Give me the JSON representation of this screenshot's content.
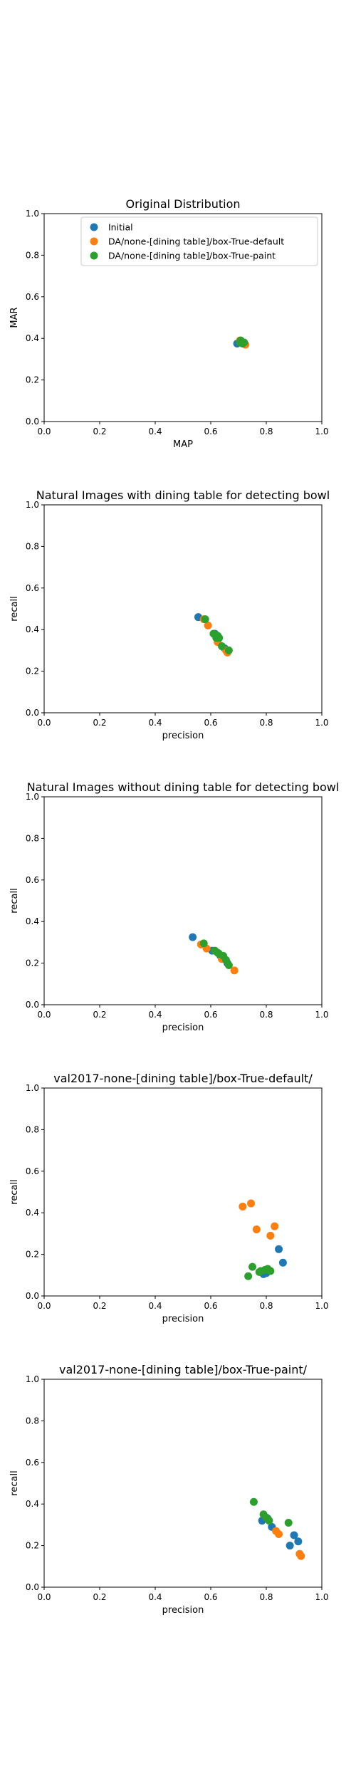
{
  "colors": {
    "initial": "#1f77b4",
    "default": "#ff7f0e",
    "paint": "#2ca02c"
  },
  "chart_data": [
    {
      "type": "scatter",
      "title": "Original Distribution",
      "xlabel": "MAP",
      "ylabel": "MAR",
      "xlim": [
        0,
        1
      ],
      "ylim": [
        0,
        1
      ],
      "xticks": [
        "0.0",
        "0.2",
        "0.4",
        "0.6",
        "0.8",
        "1.0"
      ],
      "yticks": [
        "0.0",
        "0.2",
        "0.4",
        "0.6",
        "0.8",
        "1.0"
      ],
      "legend": {
        "placement": "upper-center"
      },
      "series": [
        {
          "name": "Initial",
          "color": "#1f77b4",
          "points": [
            [
              0.695,
              0.375
            ]
          ]
        },
        {
          "name": "DA/none-[dining table]/box-True-default",
          "color": "#ff7f0e",
          "points": [
            [
              0.71,
              0.38
            ],
            [
              0.725,
              0.37
            ],
            [
              0.705,
              0.39
            ]
          ]
        },
        {
          "name": "DA/none-[dining table]/box-True-paint",
          "color": "#2ca02c",
          "points": [
            [
              0.71,
              0.385
            ],
            [
              0.705,
              0.38
            ],
            [
              0.715,
              0.375
            ],
            [
              0.72,
              0.38
            ],
            [
              0.708,
              0.39
            ]
          ]
        }
      ]
    },
    {
      "type": "scatter",
      "title": "Natural Images with dining table for detecting bowl",
      "xlabel": "precision",
      "ylabel": "recall",
      "xlim": [
        0,
        1
      ],
      "ylim": [
        0,
        1
      ],
      "xticks": [
        "0.0",
        "0.2",
        "0.4",
        "0.6",
        "0.8",
        "1.0"
      ],
      "yticks": [
        "0.0",
        "0.2",
        "0.4",
        "0.6",
        "0.8",
        "1.0"
      ],
      "series": [
        {
          "color": "#1f77b4",
          "points": [
            [
              0.555,
              0.46
            ],
            [
              0.615,
              0.38
            ],
            [
              0.65,
              0.31
            ]
          ]
        },
        {
          "color": "#ff7f0e",
          "points": [
            [
              0.59,
              0.42
            ],
            [
              0.625,
              0.34
            ],
            [
              0.66,
              0.29
            ],
            [
              0.655,
              0.3
            ],
            [
              0.575,
              0.45
            ]
          ]
        },
        {
          "color": "#2ca02c",
          "points": [
            [
              0.58,
              0.45
            ],
            [
              0.61,
              0.38
            ],
            [
              0.625,
              0.37
            ],
            [
              0.63,
              0.36
            ],
            [
              0.665,
              0.3
            ],
            [
              0.64,
              0.32
            ],
            [
              0.62,
              0.36
            ]
          ]
        }
      ]
    },
    {
      "type": "scatter",
      "title": "Natural Images without dining table for detecting bowl",
      "xlabel": "precision",
      "ylabel": "recall",
      "xlim": [
        0,
        1
      ],
      "ylim": [
        0,
        1
      ],
      "xticks": [
        "0.0",
        "0.2",
        "0.4",
        "0.6",
        "0.8",
        "1.0"
      ],
      "yticks": [
        "0.0",
        "0.2",
        "0.4",
        "0.6",
        "0.8",
        "1.0"
      ],
      "series": [
        {
          "color": "#1f77b4",
          "points": [
            [
              0.535,
              0.325
            ],
            [
              0.605,
              0.26
            ],
            [
              0.635,
              0.235
            ],
            [
              0.66,
              0.2
            ]
          ]
        },
        {
          "color": "#ff7f0e",
          "points": [
            [
              0.565,
              0.29
            ],
            [
              0.585,
              0.27
            ],
            [
              0.64,
              0.22
            ],
            [
              0.685,
              0.165
            ]
          ]
        },
        {
          "color": "#2ca02c",
          "points": [
            [
              0.575,
              0.295
            ],
            [
              0.615,
              0.26
            ],
            [
              0.625,
              0.25
            ],
            [
              0.645,
              0.235
            ],
            [
              0.655,
              0.215
            ],
            [
              0.665,
              0.19
            ],
            [
              0.63,
              0.245
            ]
          ]
        }
      ]
    },
    {
      "type": "scatter",
      "title": "val2017-none-[dining table]/box-True-default/",
      "xlabel": "precision",
      "ylabel": "recall",
      "xlim": [
        0,
        1
      ],
      "ylim": [
        0,
        1
      ],
      "xticks": [
        "0.0",
        "0.2",
        "0.4",
        "0.6",
        "0.8",
        "1.0"
      ],
      "yticks": [
        "0.0",
        "0.2",
        "0.4",
        "0.6",
        "0.8",
        "1.0"
      ],
      "series": [
        {
          "color": "#1f77b4",
          "points": [
            [
              0.845,
              0.225
            ],
            [
              0.86,
              0.16
            ],
            [
              0.79,
              0.105
            ],
            [
              0.8,
              0.11
            ]
          ]
        },
        {
          "color": "#ff7f0e",
          "points": [
            [
              0.715,
              0.43
            ],
            [
              0.745,
              0.445
            ],
            [
              0.765,
              0.32
            ],
            [
              0.83,
              0.335
            ],
            [
              0.815,
              0.29
            ]
          ]
        },
        {
          "color": "#2ca02c",
          "points": [
            [
              0.75,
              0.14
            ],
            [
              0.78,
              0.12
            ],
            [
              0.795,
              0.125
            ],
            [
              0.805,
              0.13
            ],
            [
              0.815,
              0.12
            ],
            [
              0.775,
              0.115
            ],
            [
              0.735,
              0.095
            ]
          ]
        }
      ]
    },
    {
      "type": "scatter",
      "title": "val2017-none-[dining table]/box-True-paint/",
      "xlabel": "precision",
      "ylabel": "recall",
      "xlim": [
        0,
        1
      ],
      "ylim": [
        0,
        1
      ],
      "xticks": [
        "0.0",
        "0.2",
        "0.4",
        "0.6",
        "0.8",
        "1.0"
      ],
      "yticks": [
        "0.0",
        "0.2",
        "0.4",
        "0.6",
        "0.8",
        "1.0"
      ],
      "series": [
        {
          "color": "#1f77b4",
          "points": [
            [
              0.785,
              0.32
            ],
            [
              0.805,
              0.33
            ],
            [
              0.82,
              0.29
            ],
            [
              0.9,
              0.25
            ],
            [
              0.915,
              0.22
            ],
            [
              0.885,
              0.2
            ]
          ]
        },
        {
          "color": "#ff7f0e",
          "points": [
            [
              0.835,
              0.27
            ],
            [
              0.845,
              0.255
            ],
            [
              0.92,
              0.16
            ],
            [
              0.925,
              0.15
            ]
          ]
        },
        {
          "color": "#2ca02c",
          "points": [
            [
              0.755,
              0.41
            ],
            [
              0.79,
              0.35
            ],
            [
              0.8,
              0.335
            ],
            [
              0.81,
              0.32
            ],
            [
              0.88,
              0.31
            ]
          ]
        }
      ]
    }
  ]
}
